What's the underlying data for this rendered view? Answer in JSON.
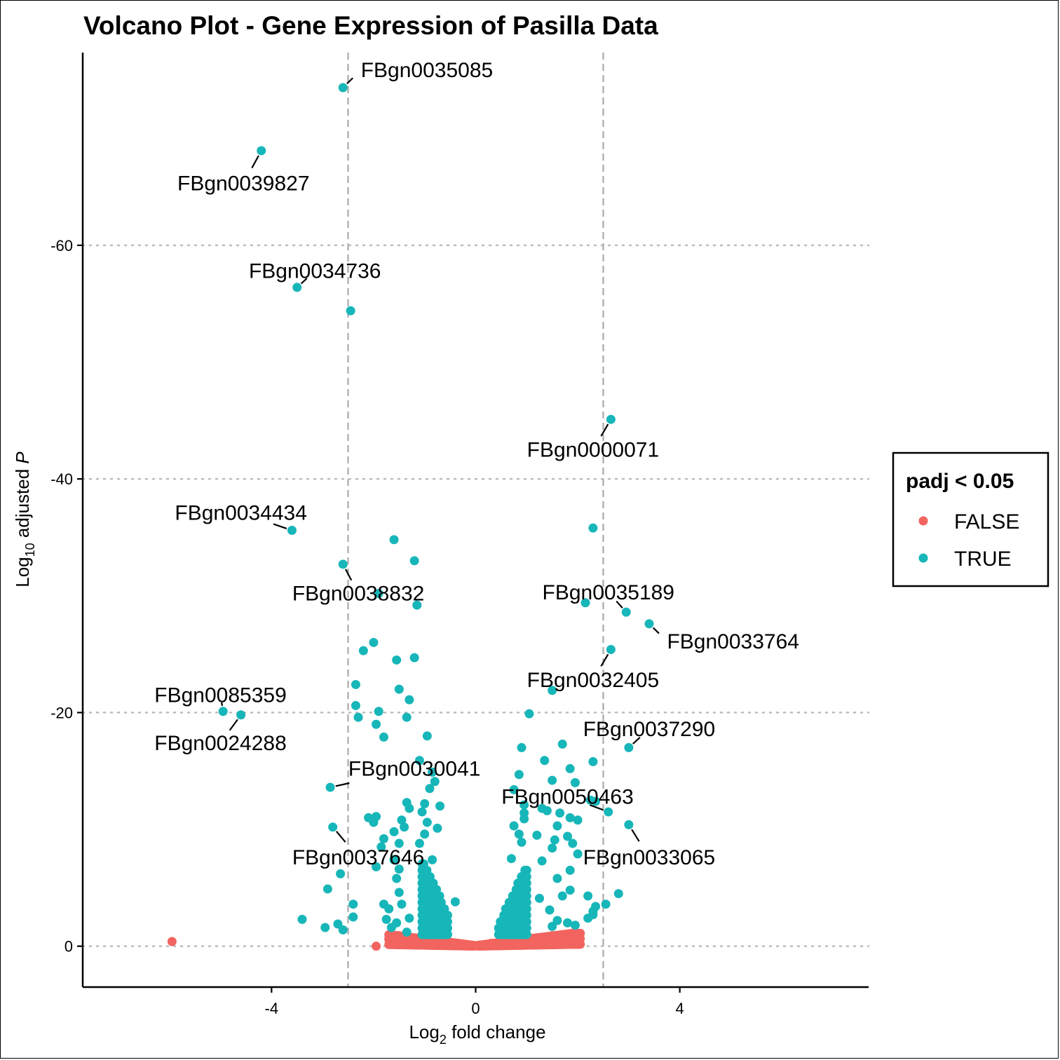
{
  "chart_data": {
    "type": "scatter",
    "title": "Volcano Plot - Gene Expression of Pasilla Data",
    "xlabel_main": "Log",
    "xlabel_sub": "2",
    "xlabel_rest": " fold change",
    "ylabel_main": "Log",
    "ylabel_sub": "10",
    "ylabel_rest": " adjusted ",
    "ylabel_italic": "P",
    "xlim": [
      -7.7,
      7.7
    ],
    "ylim": [
      3.5,
      -76.5
    ],
    "x_ticks": [
      -4,
      0,
      4
    ],
    "x_tick_labels": [
      "-4",
      "0",
      "4"
    ],
    "y_ticks": [
      -60,
      -40,
      -20,
      0
    ],
    "y_tick_labels": [
      "-60",
      "-40",
      "-20",
      "0"
    ],
    "fc_cutoffs": [
      -2.5,
      2.5
    ],
    "grid": "horizontal dotted",
    "legend": {
      "title": "padj < 0.05",
      "placement": "right",
      "entries": [
        {
          "label": "FALSE",
          "color": "#F2645F"
        },
        {
          "label": "TRUE",
          "color": "#17B6B9"
        }
      ]
    },
    "colors": {
      "false": "#F2645F",
      "true": "#17B6B9",
      "cutoff": "#aaaaaa",
      "grid": "#bbbbbb"
    },
    "labeled_points": [
      {
        "gene": "FBgn0035085",
        "x": -2.6,
        "y": -73.5,
        "label_x": -2.25,
        "label_y": -75.0,
        "anchor": "start"
      },
      {
        "gene": "FBgn0039827",
        "x": -4.2,
        "y": -68.1,
        "label_x": -4.55,
        "label_y": -65.3,
        "anchor": "middle"
      },
      {
        "gene": "FBgn0034736",
        "x": -3.5,
        "y": -56.4,
        "label_x": -3.15,
        "label_y": -57.8,
        "anchor": "middle"
      },
      {
        "gene": "FBgn0000071",
        "x": 2.65,
        "y": -45.1,
        "label_x": 2.3,
        "label_y": -42.5,
        "anchor": "middle"
      },
      {
        "gene": "FBgn0034434",
        "x": -3.6,
        "y": -35.6,
        "label_x": -4.6,
        "label_y": -37.1,
        "anchor": "middle"
      },
      {
        "gene": "FBgn0038832",
        "x": -2.6,
        "y": -32.7,
        "label_x": -2.3,
        "label_y": -30.2,
        "anchor": "middle"
      },
      {
        "gene": "FBgn0035189",
        "x": 2.95,
        "y": -28.6,
        "label_x": 2.6,
        "label_y": -30.3,
        "anchor": "middle"
      },
      {
        "gene": "FBgn0033764",
        "x": 3.4,
        "y": -27.6,
        "label_x": 3.75,
        "label_y": -26.1,
        "anchor": "start"
      },
      {
        "gene": "FBgn0032405",
        "x": 2.65,
        "y": -25.4,
        "label_x": 2.3,
        "label_y": -22.8,
        "anchor": "middle"
      },
      {
        "gene": "FBgn0085359",
        "x": -4.95,
        "y": -20.1,
        "label_x": -5.0,
        "label_y": -21.5,
        "anchor": "middle"
      },
      {
        "gene": "FBgn0024288",
        "x": -4.6,
        "y": -19.8,
        "label_x": -5.0,
        "label_y": -17.4,
        "anchor": "middle"
      },
      {
        "gene": "FBgn0037290",
        "x": 3.0,
        "y": -17.0,
        "label_x": 3.4,
        "label_y": -18.6,
        "anchor": "middle"
      },
      {
        "gene": "FBgn0030041",
        "x": -2.85,
        "y": -13.6,
        "label_x": -1.2,
        "label_y": -15.2,
        "anchor": "middle"
      },
      {
        "gene": "FBgn0050463",
        "x": 2.6,
        "y": -11.5,
        "label_x": 1.8,
        "label_y": -12.8,
        "anchor": "middle"
      },
      {
        "gene": "FBgn0033065",
        "x": 3.0,
        "y": -10.4,
        "label_x": 3.4,
        "label_y": -7.6,
        "anchor": "middle"
      },
      {
        "gene": "FBgn0037646",
        "x": -2.8,
        "y": -10.2,
        "label_x": -2.3,
        "label_y": -7.6,
        "anchor": "middle"
      }
    ],
    "true_points": [
      [
        -2.45,
        -54.4
      ],
      [
        2.3,
        -35.8
      ],
      [
        -1.6,
        -34.8
      ],
      [
        -1.2,
        -33.0
      ],
      [
        -1.9,
        -30.2
      ],
      [
        -1.15,
        -29.2
      ],
      [
        2.15,
        -29.4
      ],
      [
        -2.0,
        -26.0
      ],
      [
        -2.2,
        -25.3
      ],
      [
        -1.55,
        -24.5
      ],
      [
        -1.2,
        -24.7
      ],
      [
        -2.35,
        -22.4
      ],
      [
        -1.5,
        -22.0
      ],
      [
        -1.3,
        -21.1
      ],
      [
        1.5,
        -21.9
      ],
      [
        -2.35,
        -20.6
      ],
      [
        -1.9,
        -20.1
      ],
      [
        -1.35,
        -19.6
      ],
      [
        1.05,
        -19.9
      ],
      [
        -2.3,
        -19.6
      ],
      [
        -1.95,
        -19.0
      ],
      [
        -1.8,
        -17.9
      ],
      [
        -0.95,
        -18.0
      ],
      [
        0.9,
        -17.0
      ],
      [
        1.7,
        -17.3
      ],
      [
        -1.1,
        -15.9
      ],
      [
        -0.85,
        -14.9
      ],
      [
        -0.8,
        -14.1
      ],
      [
        0.85,
        -14.7
      ],
      [
        1.35,
        -15.9
      ],
      [
        1.85,
        -15.2
      ],
      [
        2.3,
        -15.8
      ],
      [
        -0.9,
        -13.5
      ],
      [
        0.75,
        -13.4
      ],
      [
        1.5,
        -14.2
      ],
      [
        1.95,
        -14.0
      ],
      [
        -1.35,
        -12.3
      ],
      [
        -1.3,
        -11.8
      ],
      [
        -1.0,
        -12.2
      ],
      [
        -0.7,
        -12.0
      ],
      [
        0.95,
        -12.1
      ],
      [
        1.3,
        -11.8
      ],
      [
        2.25,
        -12.5
      ],
      [
        2.35,
        -12.4
      ],
      [
        -2.1,
        -11.0
      ],
      [
        -1.95,
        -11.1
      ],
      [
        -1.45,
        -10.8
      ],
      [
        -1.05,
        -11.5
      ],
      [
        -0.95,
        -10.6
      ],
      [
        0.95,
        -11.4
      ],
      [
        1.4,
        -11.6
      ],
      [
        1.65,
        -11.4
      ],
      [
        1.85,
        -11.0
      ],
      [
        2.0,
        -10.8
      ],
      [
        -2.0,
        -10.6
      ],
      [
        -1.6,
        -9.8
      ],
      [
        -1.4,
        -10.2
      ],
      [
        -0.75,
        -10.1
      ],
      [
        0.75,
        -10.3
      ],
      [
        0.95,
        -10.9
      ],
      [
        1.6,
        -10.3
      ],
      [
        -1.8,
        -9.2
      ],
      [
        -1.5,
        -8.8
      ],
      [
        -1.0,
        -9.6
      ],
      [
        0.85,
        -9.6
      ],
      [
        1.2,
        -9.5
      ],
      [
        1.55,
        -9.1
      ],
      [
        1.8,
        -9.4
      ],
      [
        -1.85,
        -8.5
      ],
      [
        -1.1,
        -8.8
      ],
      [
        0.9,
        -8.9
      ],
      [
        1.5,
        -8.4
      ],
      [
        1.9,
        -8.8
      ],
      [
        -1.6,
        -7.4
      ],
      [
        -0.85,
        -7.4
      ],
      [
        0.7,
        -7.5
      ],
      [
        1.3,
        -7.3
      ],
      [
        2.0,
        -7.9
      ],
      [
        -1.95,
        -6.8
      ],
      [
        -1.5,
        -6.6
      ],
      [
        1.85,
        -6.5
      ],
      [
        -2.65,
        -6.2
      ],
      [
        -1.55,
        -5.8
      ],
      [
        1.6,
        -5.8
      ],
      [
        -1.0,
        -5.6
      ],
      [
        1.85,
        -4.8
      ],
      [
        -2.9,
        -4.9
      ],
      [
        -1.5,
        -4.6
      ],
      [
        1.7,
        -4.3
      ],
      [
        -1.0,
        -3.9
      ],
      [
        -0.4,
        -3.8
      ],
      [
        0.85,
        -3.5
      ],
      [
        1.25,
        -4.1
      ],
      [
        2.2,
        -4.3
      ],
      [
        2.55,
        -3.6
      ],
      [
        -2.4,
        -3.6
      ],
      [
        -1.8,
        -3.6
      ],
      [
        -1.45,
        -3.6
      ],
      [
        -1.7,
        -3.2
      ],
      [
        1.45,
        -3.1
      ],
      [
        2.35,
        -3.4
      ],
      [
        2.3,
        -3.0
      ],
      [
        2.8,
        -4.5
      ],
      [
        -3.4,
        -2.3
      ],
      [
        -2.4,
        -2.5
      ],
      [
        -1.75,
        -2.3
      ],
      [
        -1.55,
        -2.0
      ],
      [
        -1.3,
        -2.4
      ],
      [
        1.6,
        -2.2
      ],
      [
        1.8,
        -2.0
      ],
      [
        2.2,
        -2.4
      ],
      [
        2.3,
        -2.7
      ],
      [
        -2.95,
        -1.6
      ],
      [
        -2.7,
        -1.9
      ],
      [
        -2.6,
        -1.4
      ],
      [
        -1.65,
        -1.6
      ],
      [
        -1.35,
        -1.2
      ],
      [
        1.5,
        -1.7
      ],
      [
        1.95,
        -1.8
      ],
      [
        -0.6,
        -1.1
      ],
      [
        0.55,
        -1.0
      ]
    ],
    "false_points": [
      [
        -5.95,
        -0.4
      ],
      [
        -1.95,
        0.0
      ],
      [
        -1.5,
        -0.9
      ],
      [
        -1.2,
        -0.6
      ],
      [
        -0.9,
        -0.5
      ],
      [
        -0.6,
        -0.4
      ],
      [
        -0.3,
        -0.2
      ],
      [
        0.3,
        -0.25
      ],
      [
        0.6,
        -0.45
      ],
      [
        0.9,
        -0.6
      ],
      [
        1.25,
        -0.7
      ],
      [
        1.5,
        -0.9
      ],
      [
        1.85,
        -1.05
      ],
      [
        1.95,
        -1.2
      ],
      [
        1.3,
        -0.3
      ],
      [
        -1.7,
        -0.7
      ],
      [
        -1.3,
        -0.35
      ]
    ]
  }
}
